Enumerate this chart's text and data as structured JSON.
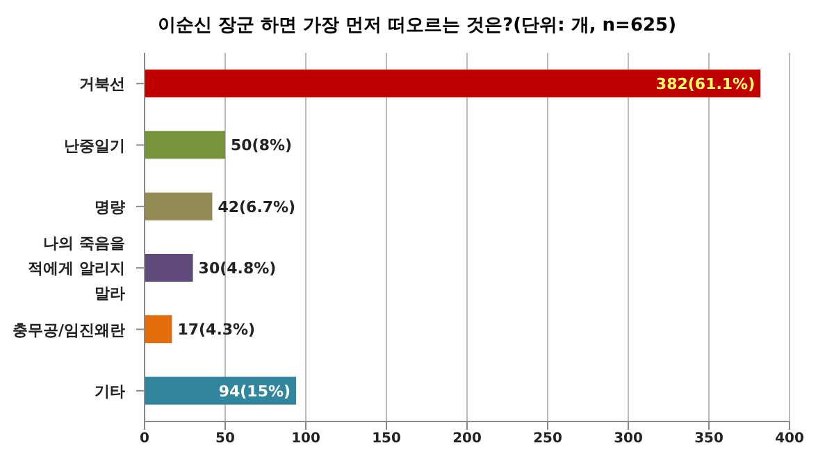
{
  "chart_data": {
    "type": "bar",
    "orientation": "horizontal",
    "title": "이순신 장군 하면 가장 먼저 떠오르는 것은?(단위: 개, n=625)",
    "categories": [
      "거북선",
      "난중일기",
      "명량",
      "나의 죽음을 적에게 알리지 말라",
      "충무공/임진왜란",
      "기타"
    ],
    "values": [
      382,
      50,
      42,
      30,
      17,
      94
    ],
    "colors": [
      "#c00000",
      "#77933c",
      "#948a54",
      "#604a7b",
      "#e46c0a",
      "#31859c"
    ],
    "value_labels": [
      "382(61.1%)",
      "50(8%)",
      "42(6.7%)",
      "30(4.8%)",
      "17(4.3%)",
      "94(15%)"
    ],
    "xlim": [
      0,
      400
    ],
    "xticks": [
      0,
      50,
      100,
      150,
      200,
      250,
      300,
      350,
      400
    ],
    "grid": "x"
  }
}
